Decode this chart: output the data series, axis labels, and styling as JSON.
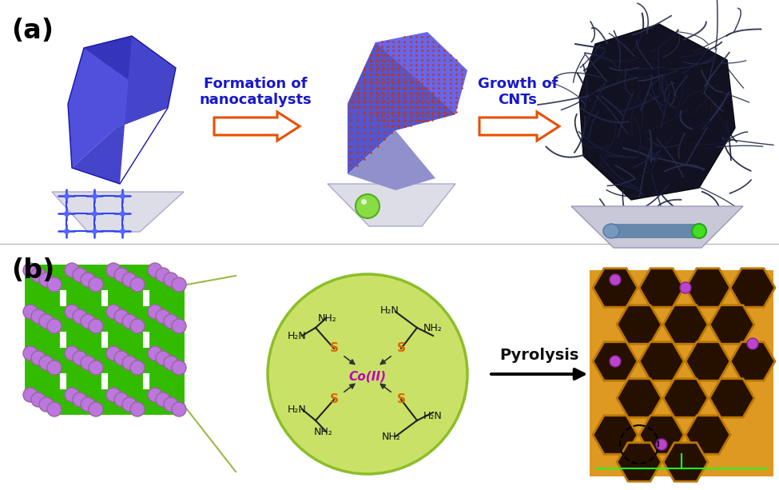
{
  "panel_a_label": "(a)",
  "panel_b_label": "(b)",
  "arrow1_text_line1": "Formation of",
  "arrow1_text_line2": "nanocatalysts",
  "arrow2_text_line1": "Growth of",
  "arrow2_text_line2": "CNTs",
  "pyrolysis_text": "Pyrolysis",
  "arrow_color": "#E85000",
  "text_color_blue": "#1818CC",
  "text_color_black": "#111111",
  "label_color": "#000000",
  "chem_center_color": "#BB00BB",
  "chem_s_color": "#DD6600",
  "chem_nh2_color": "#111111",
  "circle_fill": "#C8E060",
  "circle_edge": "#88BB22",
  "mof_bar_color": "#33BB00",
  "mof_ball_color": "#BB77DD",
  "background": "#FFFFFF",
  "crystal_dark": "#2222AA",
  "crystal_mid": "#4444CC",
  "crystal_light": "#6666EE",
  "crystal_purple_light": "#9999DD",
  "base_fill": "#E0E0EE",
  "base_edge": "#BBBBCC"
}
